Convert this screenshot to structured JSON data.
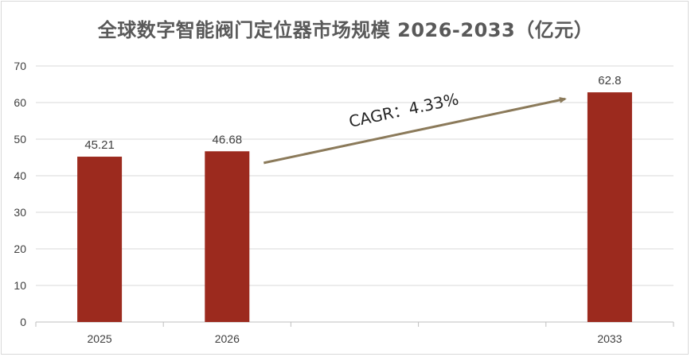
{
  "chart_data": {
    "type": "bar",
    "title": "全球数字智能阀门定位器市场规模 2026-2033（亿元）",
    "categories": [
      "2025",
      "2026",
      "",
      "",
      "2033"
    ],
    "values": [
      45.21,
      46.68,
      null,
      null,
      62.8
    ],
    "data_labels": [
      "45.21",
      "46.68",
      "",
      "",
      "62.8"
    ],
    "ylim": [
      0,
      70
    ],
    "y_ticks": [
      0,
      10,
      20,
      30,
      40,
      50,
      60,
      70
    ],
    "y_tick_labels": [
      "0",
      "10",
      "20",
      "30",
      "40",
      "50",
      "60",
      "70"
    ],
    "grid": true,
    "legend": "none",
    "bar_color": "#9c2a1e",
    "arrow_color": "#8b7a5a",
    "annotation": "CAGR：4.33%"
  }
}
